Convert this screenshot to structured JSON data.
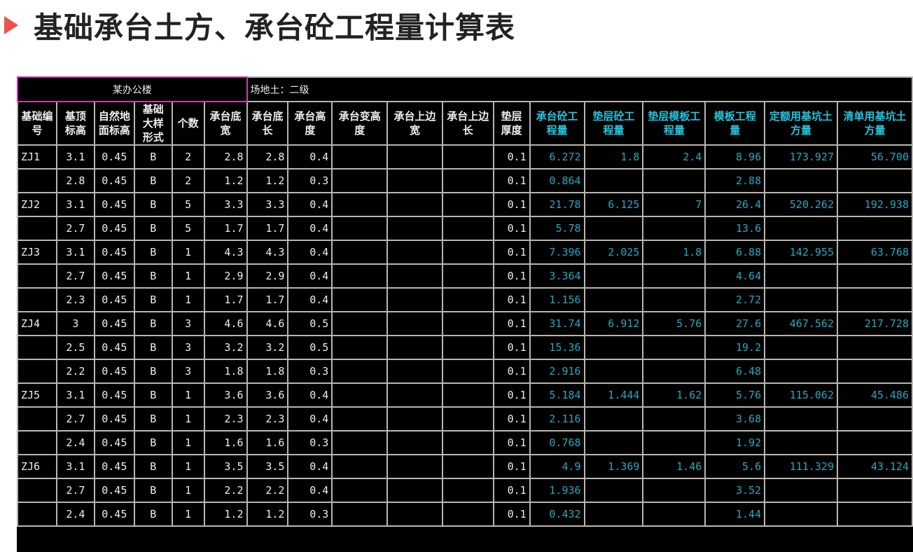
{
  "title": "基础承台土方、承台砼工程量计算表",
  "colors": {
    "accent_triangle": "#f0504a",
    "quantity_text": "#21aac0",
    "header_quantity_text": "#22c6de",
    "sheet_bg": "#000000",
    "project_border": "#c83cb4"
  },
  "sheet": {
    "project": "某办公楼",
    "site_soil": "场地土：二级",
    "headers": [
      "基础编号",
      "基顶标高",
      "自然地面标高",
      "基础大样形式",
      "个数",
      "承台底宽",
      "承台底长",
      "承台高度",
      "承台变高度",
      "承台上边宽",
      "承台上边长",
      "垫层厚度",
      "承台砼工程量",
      "垫层砼工程量",
      "垫层模板工程量",
      "模板工程量",
      "定额用基坑土方量",
      "清单用基坑土方量"
    ],
    "rows": [
      [
        "ZJ1",
        "3.1",
        "0.45",
        "B",
        "2",
        "2.8",
        "2.8",
        "0.4",
        "",
        "",
        "",
        "0.1",
        "6.272",
        "1.8",
        "2.4",
        "8.96",
        "173.927",
        "56.700"
      ],
      [
        "",
        "2.8",
        "0.45",
        "B",
        "2",
        "1.2",
        "1.2",
        "0.3",
        "",
        "",
        "",
        "0.1",
        "0.864",
        "",
        "",
        "2.88",
        "",
        ""
      ],
      [
        "ZJ2",
        "3.1",
        "0.45",
        "B",
        "5",
        "3.3",
        "3.3",
        "0.4",
        "",
        "",
        "",
        "0.1",
        "21.78",
        "6.125",
        "7",
        "26.4",
        "520.262",
        "192.938"
      ],
      [
        "",
        "2.7",
        "0.45",
        "B",
        "5",
        "1.7",
        "1.7",
        "0.4",
        "",
        "",
        "",
        "0.1",
        "5.78",
        "",
        "",
        "13.6",
        "",
        ""
      ],
      [
        "ZJ3",
        "3.1",
        "0.45",
        "B",
        "1",
        "4.3",
        "4.3",
        "0.4",
        "",
        "",
        "",
        "0.1",
        "7.396",
        "2.025",
        "1.8",
        "6.88",
        "142.955",
        "63.768"
      ],
      [
        "",
        "2.7",
        "0.45",
        "B",
        "1",
        "2.9",
        "2.9",
        "0.4",
        "",
        "",
        "",
        "0.1",
        "3.364",
        "",
        "",
        "4.64",
        "",
        ""
      ],
      [
        "",
        "2.3",
        "0.45",
        "B",
        "1",
        "1.7",
        "1.7",
        "0.4",
        "",
        "",
        "",
        "0.1",
        "1.156",
        "",
        "",
        "2.72",
        "",
        ""
      ],
      [
        "ZJ4",
        "3",
        "0.45",
        "B",
        "3",
        "4.6",
        "4.6",
        "0.5",
        "",
        "",
        "",
        "0.1",
        "31.74",
        "6.912",
        "5.76",
        "27.6",
        "467.562",
        "217.728"
      ],
      [
        "",
        "2.5",
        "0.45",
        "B",
        "3",
        "3.2",
        "3.2",
        "0.5",
        "",
        "",
        "",
        "0.1",
        "15.36",
        "",
        "",
        "19.2",
        "",
        ""
      ],
      [
        "",
        "2.2",
        "0.45",
        "B",
        "3",
        "1.8",
        "1.8",
        "0.3",
        "",
        "",
        "",
        "0.1",
        "2.916",
        "",
        "",
        "6.48",
        "",
        ""
      ],
      [
        "ZJ5",
        "3.1",
        "0.45",
        "B",
        "1",
        "3.6",
        "3.6",
        "0.4",
        "",
        "",
        "",
        "0.1",
        "5.184",
        "1.444",
        "1.62",
        "5.76",
        "115.062",
        "45.486"
      ],
      [
        "",
        "2.7",
        "0.45",
        "B",
        "1",
        "2.3",
        "2.3",
        "0.4",
        "",
        "",
        "",
        "0.1",
        "2.116",
        "",
        "",
        "3.68",
        "",
        ""
      ],
      [
        "",
        "2.4",
        "0.45",
        "B",
        "1",
        "1.6",
        "1.6",
        "0.3",
        "",
        "",
        "",
        "0.1",
        "0.768",
        "",
        "",
        "1.92",
        "",
        ""
      ],
      [
        "ZJ6",
        "3.1",
        "0.45",
        "B",
        "1",
        "3.5",
        "3.5",
        "0.4",
        "",
        "",
        "",
        "0.1",
        "4.9",
        "1.369",
        "1.46",
        "5.6",
        "111.329",
        "43.124"
      ],
      [
        "",
        "2.7",
        "0.45",
        "B",
        "1",
        "2.2",
        "2.2",
        "0.4",
        "",
        "",
        "",
        "0.1",
        "1.936",
        "",
        "",
        "3.52",
        "",
        ""
      ],
      [
        "",
        "2.4",
        "0.45",
        "B",
        "1",
        "1.2",
        "1.2",
        "0.3",
        "",
        "",
        "",
        "0.1",
        "0.432",
        "",
        "",
        "1.44",
        "",
        ""
      ]
    ]
  }
}
